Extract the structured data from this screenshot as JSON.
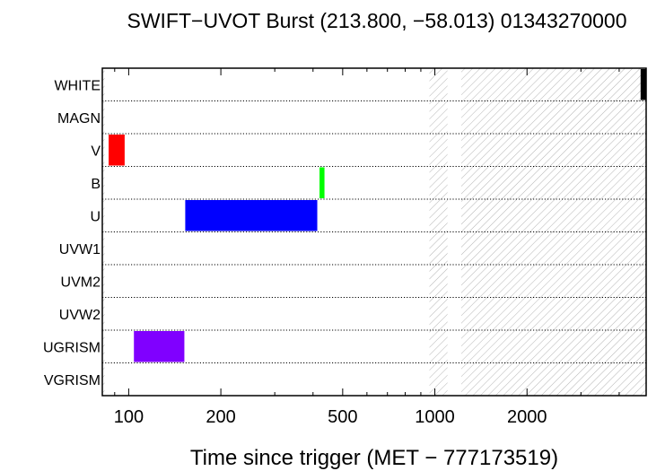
{
  "chart_data": {
    "type": "bar",
    "title": "SWIFT−UVOT Burst (213.800, −58.013) 01343270000",
    "xlabel": "Time since trigger (MET − 777173519)",
    "ylabel": "",
    "x_scale": "log",
    "xlim": [
      82,
      4900
    ],
    "x_ticks": [
      {
        "value": 100,
        "label": "100"
      },
      {
        "value": 200,
        "label": "200"
      },
      {
        "value": 500,
        "label": "500"
      },
      {
        "value": 1000,
        "label": "1000"
      },
      {
        "value": 2000,
        "label": "2000"
      }
    ],
    "categories": [
      "WHITE",
      "MAGN",
      "V",
      "B",
      "U",
      "UVW1",
      "UVM2",
      "UVW2",
      "UGRISM",
      "VGRISM"
    ],
    "grid": "dotted horizontal separators between filters",
    "exposures": [
      {
        "filter": "WHITE",
        "start": 4700,
        "end": 4900,
        "color": "#000000"
      },
      {
        "filter": "V",
        "start": 86,
        "end": 97,
        "color": "#ff0000"
      },
      {
        "filter": "B",
        "start": 420,
        "end": 436,
        "color": "#00ff00"
      },
      {
        "filter": "U",
        "start": 153,
        "end": 413,
        "color": "#0000ff"
      },
      {
        "filter": "UGRISM",
        "start": 104,
        "end": 152,
        "color": "#8000ff"
      }
    ],
    "hatched_intervals": [
      {
        "start": 82,
        "end": 83.5
      },
      {
        "start": 960,
        "end": 1100
      },
      {
        "start": 1220,
        "end": 4900
      }
    ]
  }
}
